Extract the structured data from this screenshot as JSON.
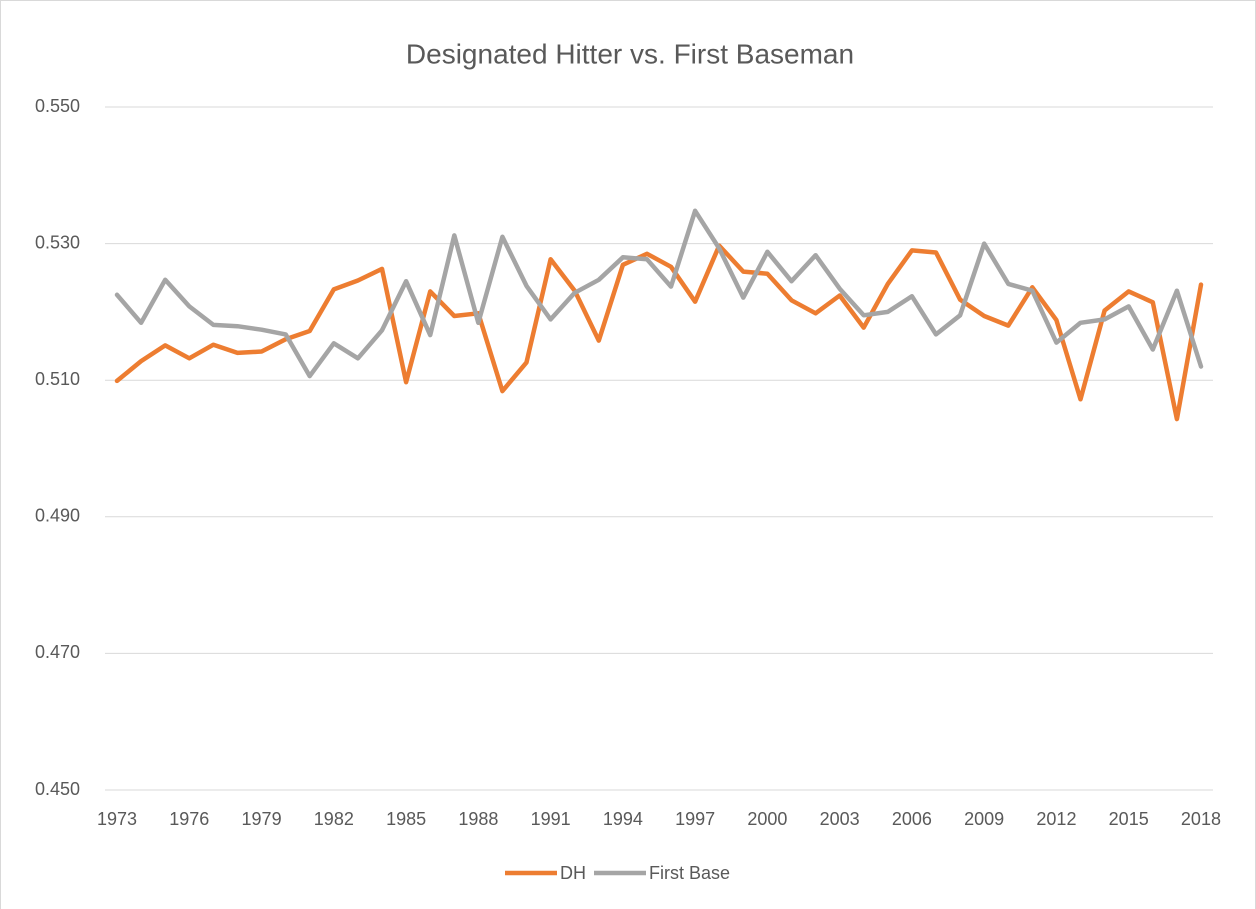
{
  "chart_data": {
    "type": "line",
    "title": "Designated Hitter vs. First Baseman",
    "categories": [
      "1973",
      null,
      null,
      "1976",
      null,
      null,
      "1979",
      null,
      null,
      "1982",
      null,
      null,
      "1985",
      null,
      null,
      "1988",
      null,
      null,
      "1991",
      null,
      null,
      "1994",
      null,
      null,
      "1997",
      null,
      null,
      "2000",
      null,
      null,
      "2003",
      null,
      null,
      "2006",
      null,
      null,
      "2009",
      null,
      null,
      "2012",
      null,
      null,
      "2015",
      null,
      null,
      "2018"
    ],
    "series": [
      {
        "name": "DH",
        "color": "#ed7d31",
        "values": [
          0.5099,
          0.5128,
          0.5151,
          0.5132,
          0.5152,
          0.514,
          0.5142,
          0.516,
          0.5172,
          0.5233,
          0.5246,
          0.5263,
          0.5097,
          0.523,
          0.5194,
          0.5198,
          0.5084,
          0.5126,
          0.5277,
          0.5231,
          0.5158,
          0.5269,
          0.5285,
          0.5266,
          0.5215,
          0.5297,
          0.5259,
          0.5256,
          0.5217,
          0.5198,
          0.5224,
          0.5177,
          0.5241,
          0.529,
          0.5287,
          0.5218,
          0.5194,
          0.518,
          0.5236,
          0.5188,
          0.5072,
          0.5202,
          0.523,
          0.5214,
          0.5043,
          0.524
        ]
      },
      {
        "name": "First Base",
        "color": "#a5a5a5",
        "values": [
          0.5225,
          0.5184,
          0.5247,
          0.5208,
          0.5181,
          0.5179,
          0.5174,
          0.5167,
          0.5106,
          0.5154,
          0.5132,
          0.5173,
          0.5245,
          0.5166,
          0.5312,
          0.5184,
          0.531,
          0.5238,
          0.5189,
          0.5228,
          0.5247,
          0.528,
          0.5277,
          0.5237,
          0.5348,
          0.5293,
          0.5221,
          0.5288,
          0.5245,
          0.5283,
          0.5234,
          0.5195,
          0.52,
          0.5223,
          0.5167,
          0.5195,
          0.53,
          0.5241,
          0.5231,
          0.5155,
          0.5184,
          0.5189,
          0.5208,
          0.5145,
          0.5231,
          0.512
        ]
      }
    ],
    "ylim": [
      0.45,
      0.55
    ],
    "yticks": [
      {
        "value": 0.45,
        "label": "0.450"
      },
      {
        "value": 0.47,
        "label": "0.470"
      },
      {
        "value": 0.49,
        "label": "0.490"
      },
      {
        "value": 0.51,
        "label": "0.510"
      },
      {
        "value": 0.53,
        "label": "0.530"
      },
      {
        "value": 0.55,
        "label": "0.550"
      }
    ],
    "grid": true,
    "legend": "bottom"
  }
}
